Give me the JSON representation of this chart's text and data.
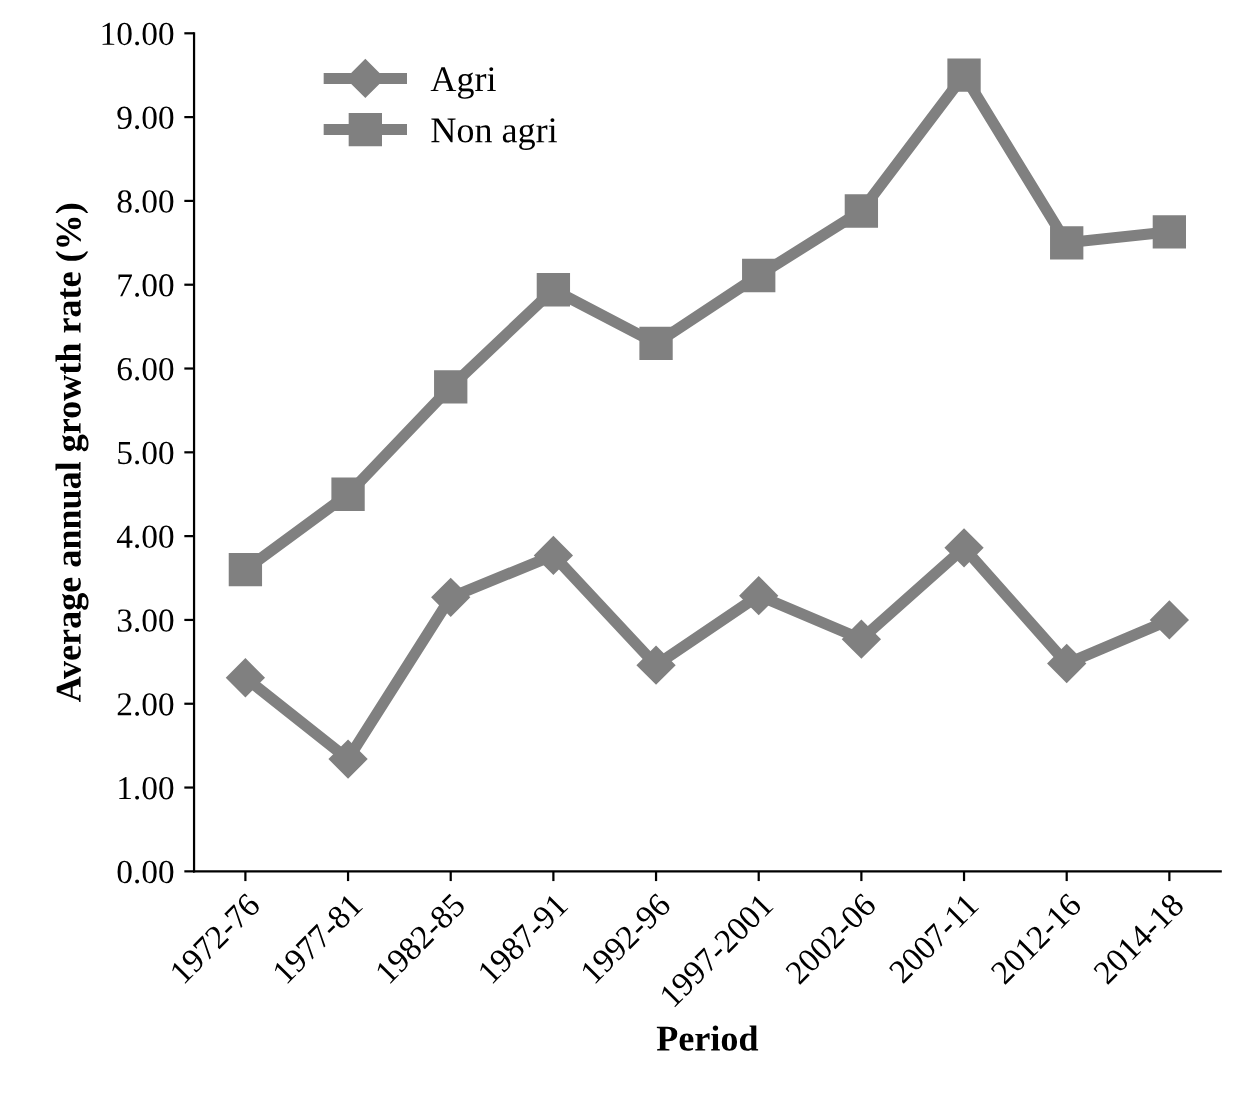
{
  "chart_data": {
    "type": "line",
    "xlabel": "Period",
    "ylabel": "Average annual growth rate (%)",
    "categories": [
      "1972-76",
      "1977-81",
      "1982-85",
      "1987-91",
      "1992-96",
      "1997-2001",
      "2002-06",
      "2007-11",
      "2012-16",
      "2014-18"
    ],
    "series": [
      {
        "name": "Agri",
        "color": "#808080",
        "marker": "diamond",
        "values": [
          2.31,
          1.34,
          3.27,
          3.77,
          2.46,
          3.29,
          2.77,
          3.86,
          2.48,
          3.0
        ]
      },
      {
        "name": "Non agri",
        "color": "#808080",
        "marker": "square",
        "values": [
          3.6,
          4.5,
          5.78,
          6.94,
          6.3,
          7.11,
          7.88,
          9.5,
          7.5,
          7.63
        ]
      }
    ],
    "ylim": [
      0,
      10
    ],
    "yticks": [
      {
        "value": 0,
        "label": "0.00"
      },
      {
        "value": 1,
        "label": "1.00"
      },
      {
        "value": 2,
        "label": "2.00"
      },
      {
        "value": 3,
        "label": "3.00"
      },
      {
        "value": 4,
        "label": "4.00"
      },
      {
        "value": 5,
        "label": "5.00"
      },
      {
        "value": 6,
        "label": "6.00"
      },
      {
        "value": 7,
        "label": "7.00"
      },
      {
        "value": 8,
        "label": "8.00"
      },
      {
        "value": 9,
        "label": "9.00"
      },
      {
        "value": 10,
        "label": "10.00"
      }
    ],
    "grid": false,
    "legend": "top left",
    "line_style": "solid"
  }
}
